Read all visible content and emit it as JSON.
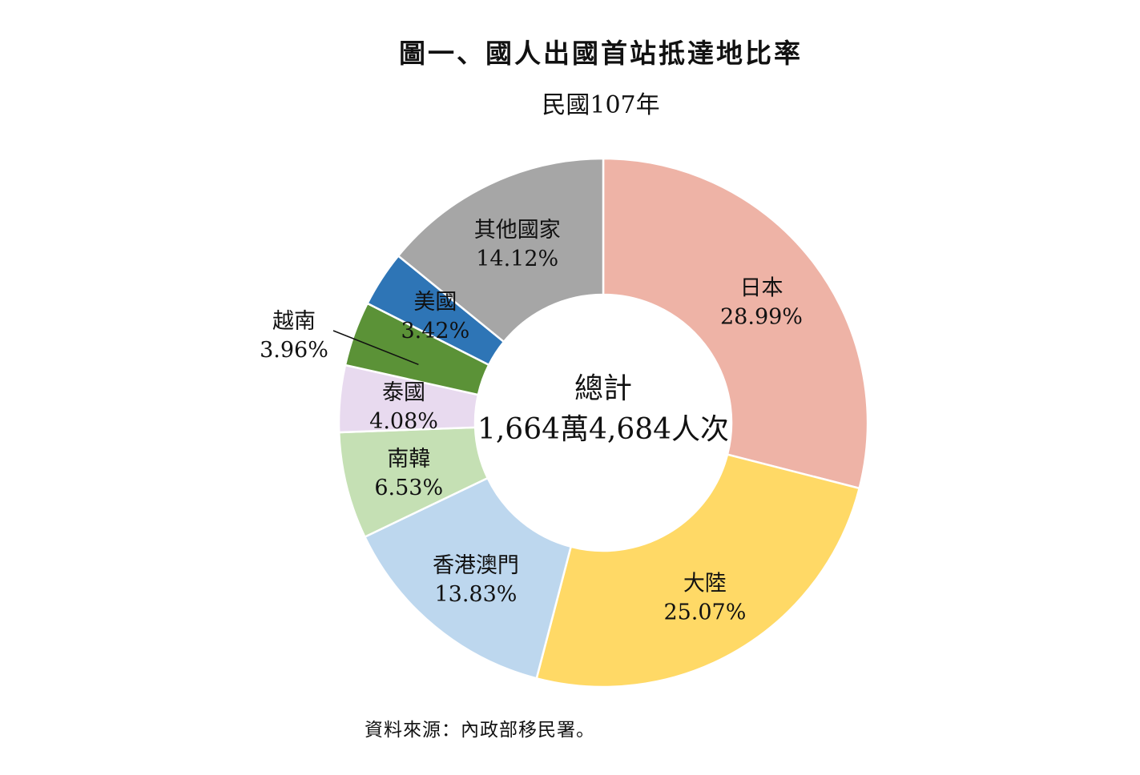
{
  "chart_data": {
    "type": "pie",
    "title": "圖一、國人出國首站抵達地比率",
    "subtitle": "民國107年",
    "center_label": {
      "line1": "總計",
      "line2": "1,664萬4,684人次"
    },
    "unit": "%",
    "slices": [
      {
        "label": "日本",
        "value": 28.99,
        "value_text": "28.99%",
        "color": "#EEB3A6"
      },
      {
        "label": "大陸",
        "value": 25.07,
        "value_text": "25.07%",
        "color": "#FFD966"
      },
      {
        "label": "香港澳門",
        "value": 13.83,
        "value_text": "13.83%",
        "color": "#BDD7EE"
      },
      {
        "label": "南韓",
        "value": 6.53,
        "value_text": "6.53%",
        "color": "#C5E0B4"
      },
      {
        "label": "泰國",
        "value": 4.08,
        "value_text": "4.08%",
        "color": "#E8DAEF"
      },
      {
        "label": "越南",
        "value": 3.96,
        "value_text": "3.96%",
        "color": "#5B9237"
      },
      {
        "label": "美國",
        "value": 3.42,
        "value_text": "3.42%",
        "color": "#2E75B6"
      },
      {
        "label": "其他國家",
        "value": 14.12,
        "value_text": "14.12%",
        "color": "#A6A6A6"
      }
    ],
    "source": "資料來源：內政部移民署。"
  }
}
